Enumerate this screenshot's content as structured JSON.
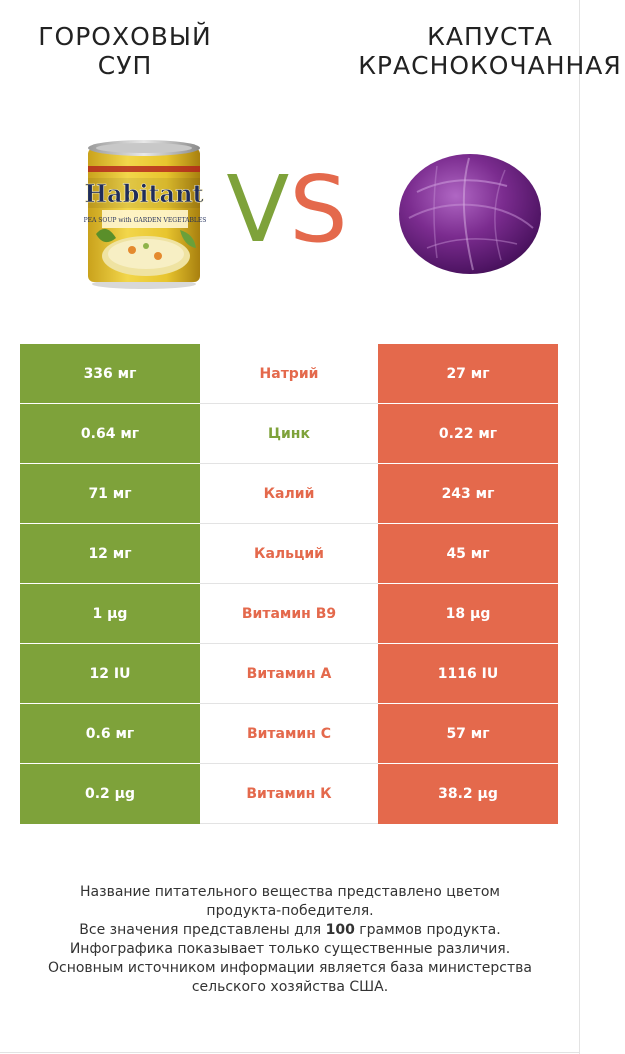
{
  "header": {
    "left_title_line1": "ГОРОХОВЫЙ",
    "left_title_line2": "СУП",
    "right_title_line1": "КАПУСТА",
    "right_title_line2": "КРАСНОКОЧАННАЯ",
    "vs_v": "V",
    "vs_s": "S"
  },
  "colors": {
    "left_winner": "#7ea23a",
    "right_winner": "#e4694c"
  },
  "left_image": {
    "brand": "Habitant",
    "product": "PEA SOUP with GARDEN VEGETABLES"
  },
  "rows": [
    {
      "left": "336 мг",
      "nutrient": "Натрий",
      "right": "27 мг",
      "winner": "right"
    },
    {
      "left": "0.64 мг",
      "nutrient": "Цинк",
      "right": "0.22 мг",
      "winner": "left"
    },
    {
      "left": "71 мг",
      "nutrient": "Калий",
      "right": "243 мг",
      "winner": "right"
    },
    {
      "left": "12 мг",
      "nutrient": "Кальций",
      "right": "45 мг",
      "winner": "right"
    },
    {
      "left": "1 µg",
      "nutrient": "Витамин B9",
      "right": "18 µg",
      "winner": "right"
    },
    {
      "left": "12 IU",
      "nutrient": "Витамин A",
      "right": "1116 IU",
      "winner": "right"
    },
    {
      "left": "0.6 мг",
      "nutrient": "Витамин C",
      "right": "57 мг",
      "winner": "right"
    },
    {
      "left": "0.2 µg",
      "nutrient": "Витамин К",
      "right": "38.2 µg",
      "winner": "right"
    }
  ],
  "footer": {
    "line1": "Название питательного вещества представлено цветом",
    "line2": "продукта-победителя.",
    "line3_pre": "Все значения представлены для ",
    "line3_bold": "100",
    "line3_post": " граммов продукта.",
    "line4": "Инфографика показывает только существенные различия.",
    "line5": "Основным источником информации является база министерства",
    "line6": "сельского хозяйства США."
  }
}
